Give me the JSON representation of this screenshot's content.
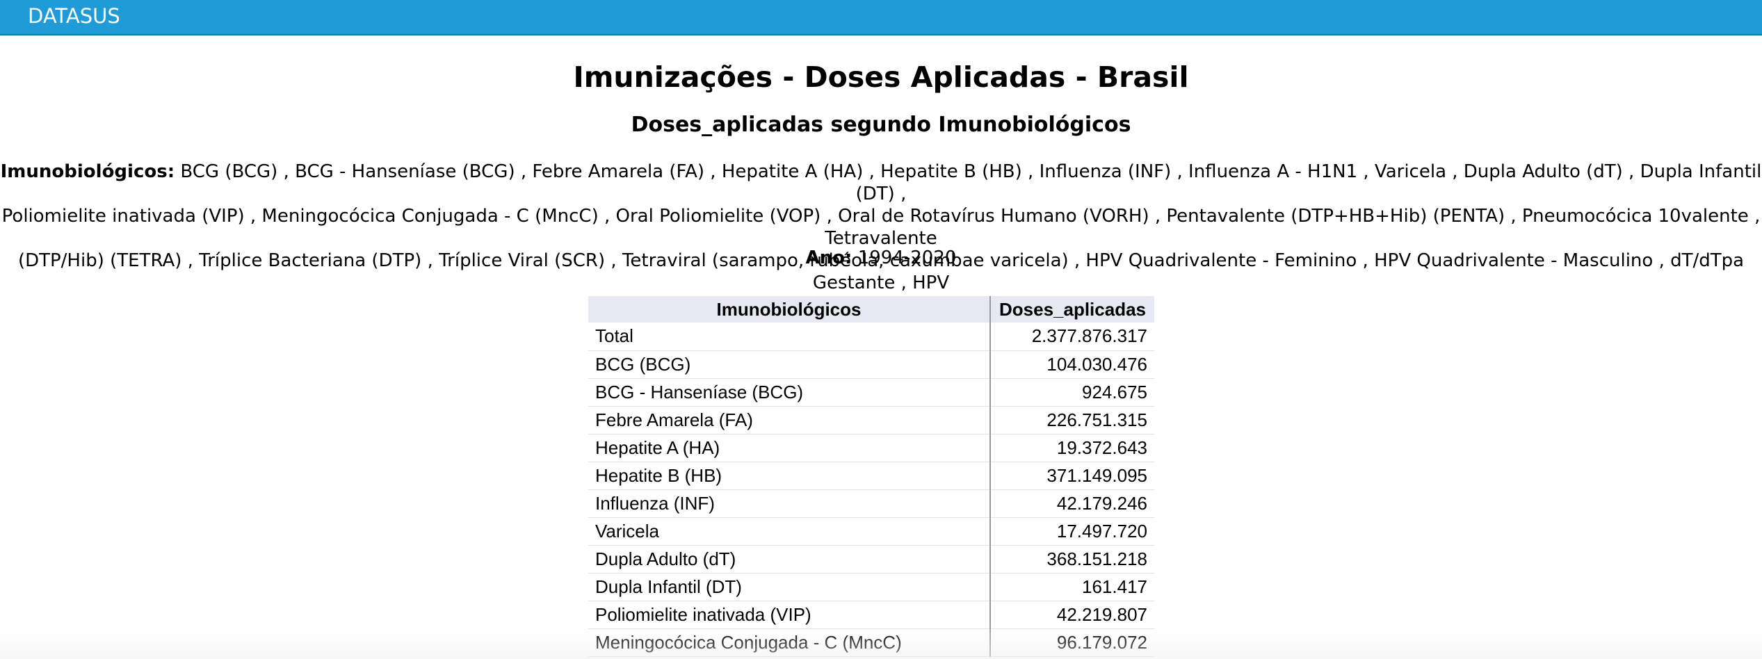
{
  "header": {
    "brand": "DATASUS"
  },
  "report": {
    "title": "Imunizações - Doses Aplicadas - Brasil",
    "subtitle": "Doses_aplicadas segundo Imunobiológicos",
    "filter_label": "Imunobiológicos:",
    "filter_line1": "BCG (BCG) , BCG - Hanseníase (BCG) , Febre Amarela (FA) , Hepatite A (HA) , Hepatite B (HB) , Influenza (INF) , Influenza A - H1N1 , Varicela , Dupla Adulto (dT) , Dupla Infantil (DT) ,",
    "filter_line2": "Poliomielite inativada (VIP) , Meningocócica Conjugada - C (MncC) , Oral Poliomielite (VOP) , Oral de Rotavírus Humano (VORH) , Pentavalente (DTP+HB+Hib) (PENTA) , Pneumocócica 10valente , Tetravalente",
    "filter_line3": "(DTP/Hib) (TETRA) , Tríplice Bacteriana (DTP) , Tríplice Viral (SCR) , Tetraviral (sarampo, rubéola, caxumbae varicela) , HPV Quadrivalente - Feminino , HPV Quadrivalente - Masculino , dT/dTpa Gestante , HPV",
    "year_label": "Ano:",
    "year_value": "1994-2020"
  },
  "table": {
    "headers": [
      "Imunobiológicos",
      "Doses_aplicadas"
    ],
    "rows": [
      [
        "Total",
        "2.377.876.317"
      ],
      [
        "BCG (BCG)",
        "104.030.476"
      ],
      [
        "BCG - Hanseníase (BCG)",
        "924.675"
      ],
      [
        "Febre Amarela (FA)",
        "226.751.315"
      ],
      [
        "Hepatite A (HA)",
        "19.372.643"
      ],
      [
        "Hepatite B (HB)",
        "371.149.095"
      ],
      [
        "Influenza (INF)",
        "42.179.246"
      ],
      [
        "Varicela",
        "17.497.720"
      ],
      [
        "Dupla Adulto (dT)",
        "368.151.218"
      ],
      [
        "Dupla Infantil (DT)",
        "161.417"
      ],
      [
        "Poliomielite inativada (VIP)",
        "42.219.807"
      ],
      [
        "Meningocócica Conjugada - C (MncC)",
        "96.179.072"
      ]
    ]
  }
}
